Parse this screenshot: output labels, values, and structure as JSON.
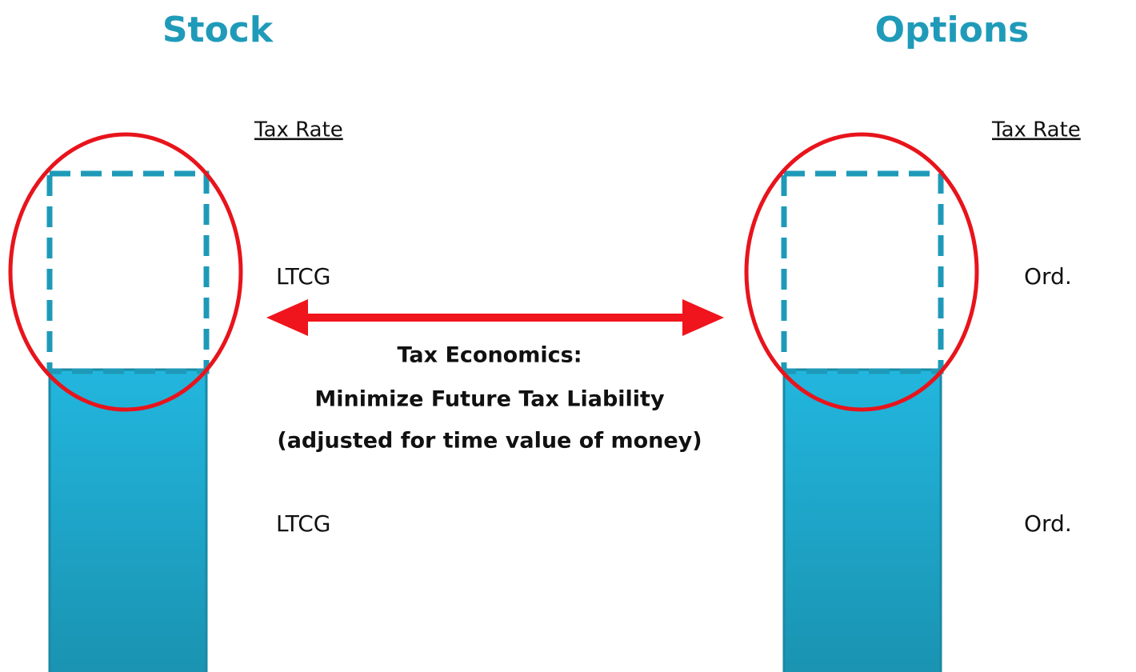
{
  "columns": [
    {
      "title": "Stock",
      "rate_header": "Tax Rate",
      "rates": [
        "LTCG",
        "LTCG"
      ]
    },
    {
      "title": "Options",
      "rate_header": "Tax Rate",
      "rates": [
        "Ord.",
        "Ord."
      ]
    }
  ],
  "center": {
    "lines": [
      "Tax Economics:",
      "Minimize Future Tax Liability",
      "(adjusted for time value of money)"
    ]
  }
}
